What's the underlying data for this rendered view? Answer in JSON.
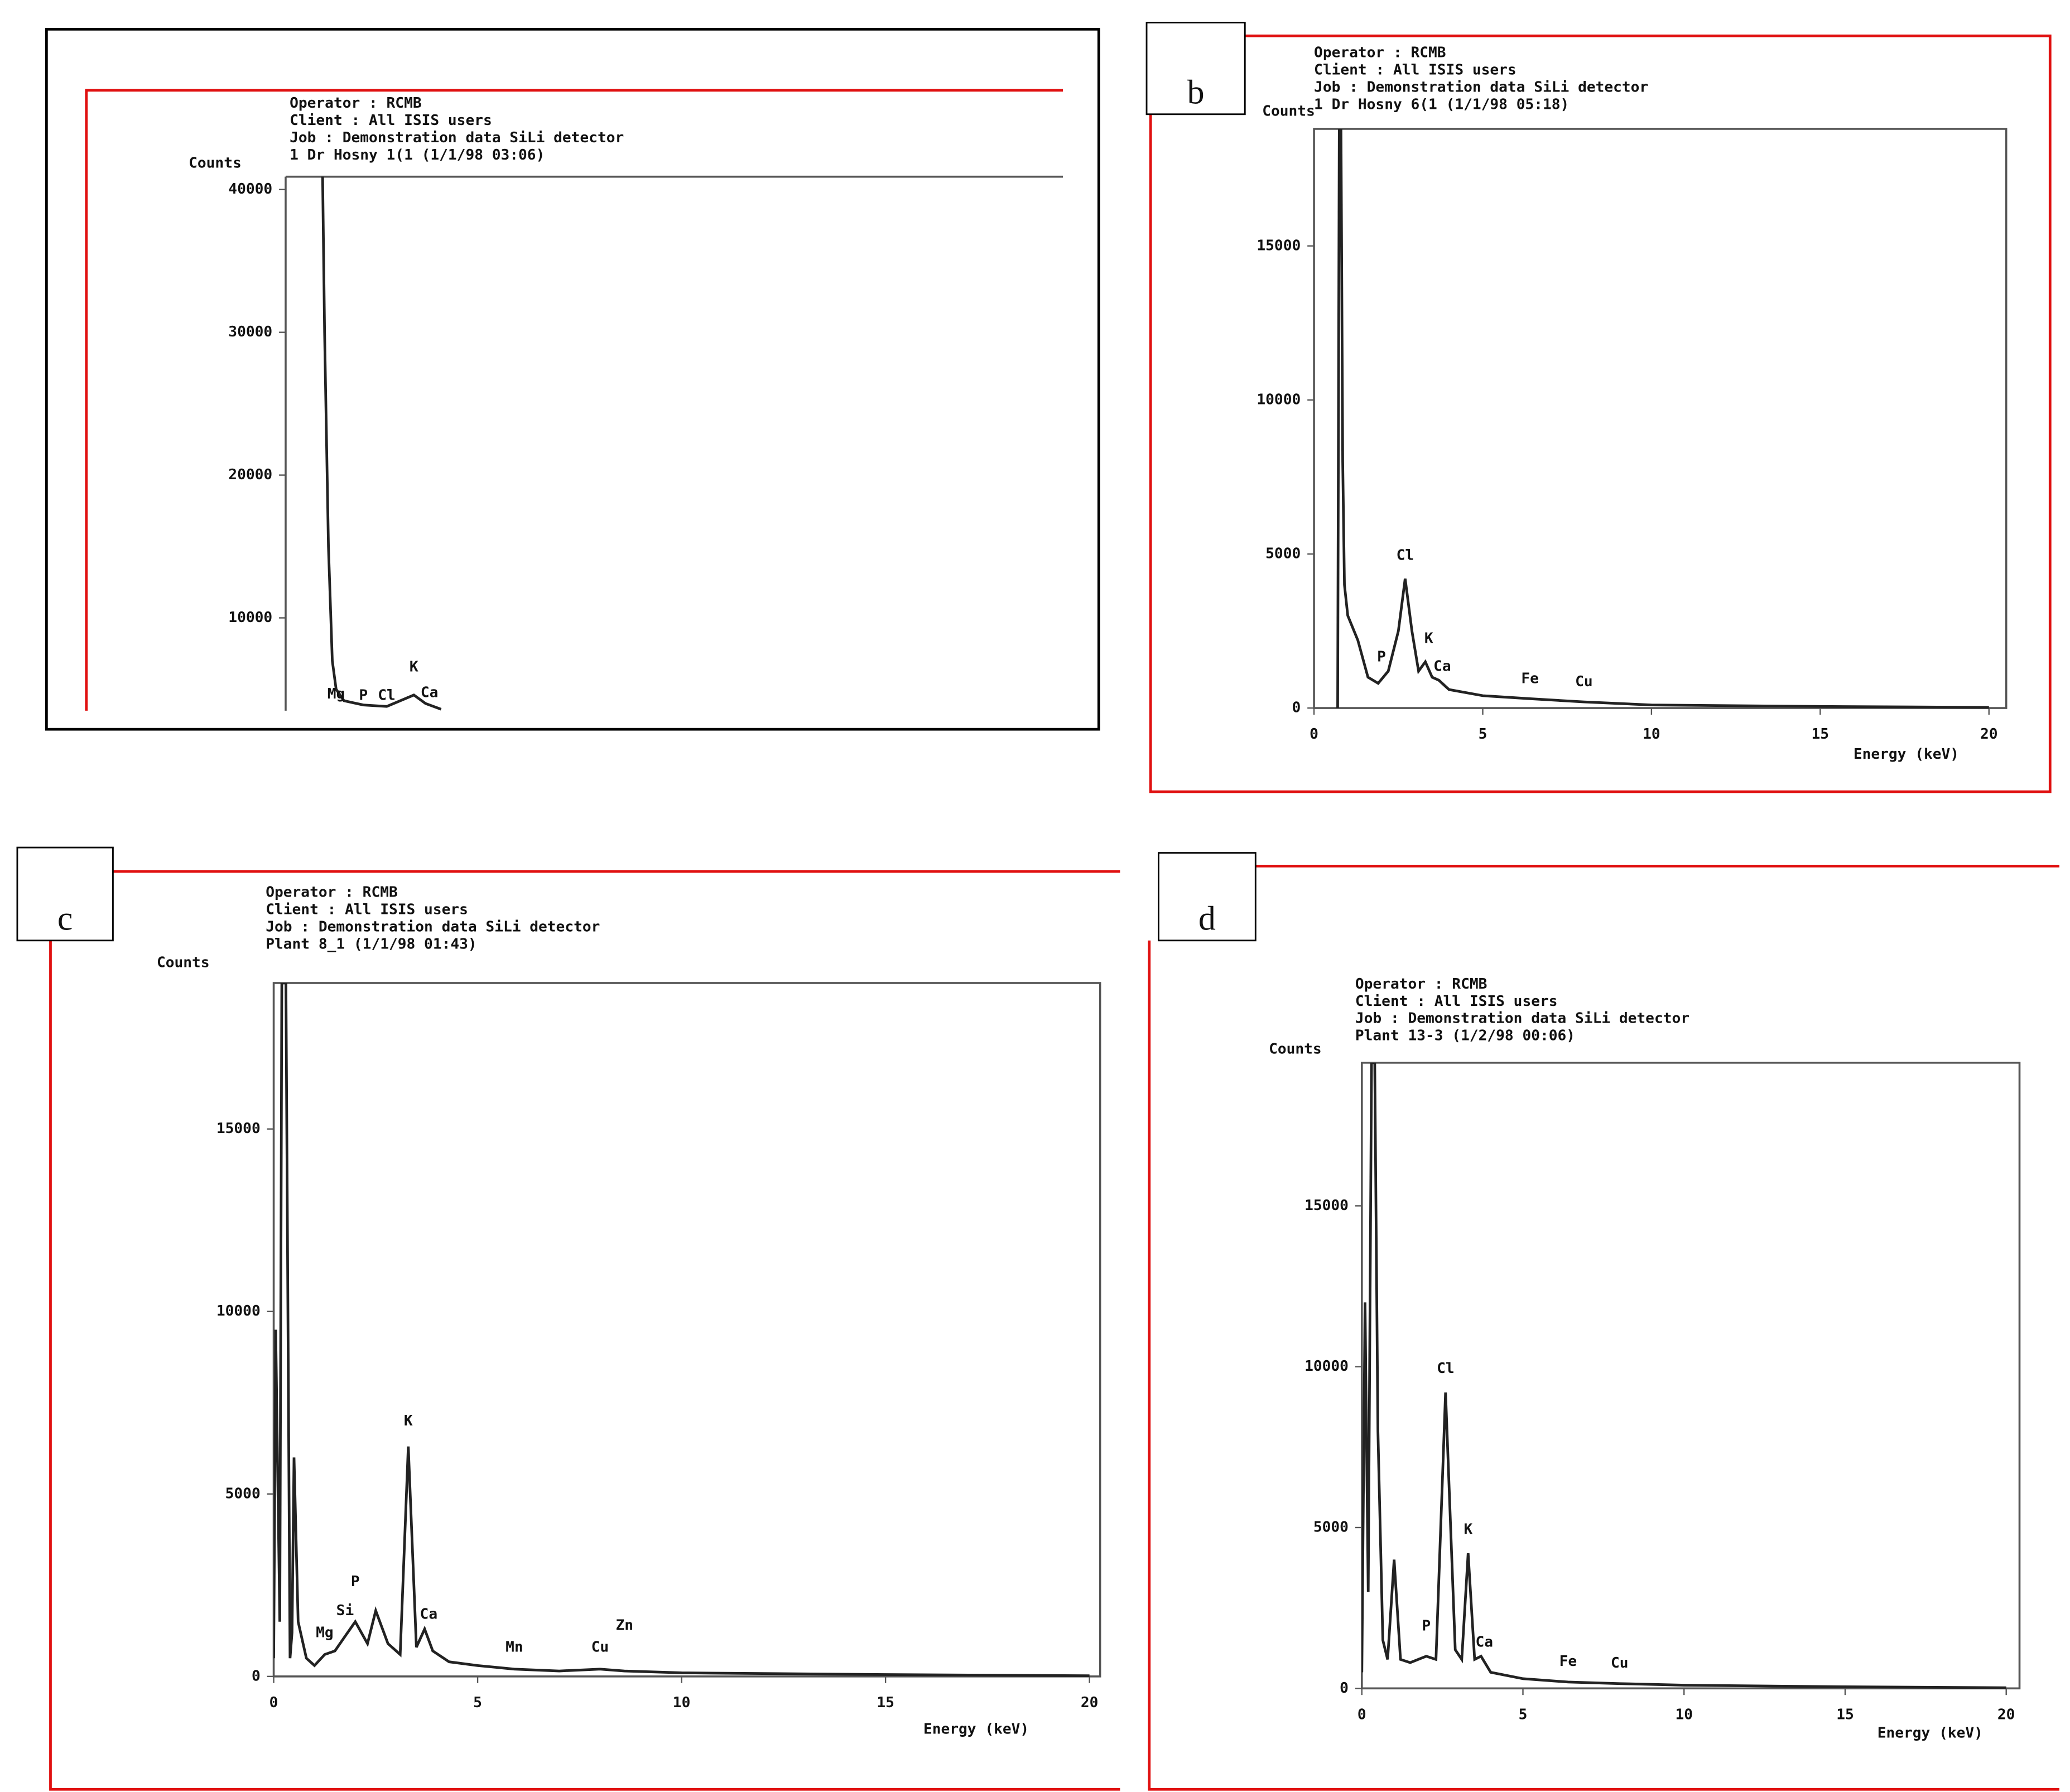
{
  "chart_data": [
    {
      "type": "line",
      "header": [
        "Operator : RCMB",
        "Client : All  ISIS  users",
        "Job : Demonstration data  SiLi detector",
        "1 Dr Hosny 1(1 (1/1/98 03:06)"
      ],
      "y_label": "Counts",
      "xlim": [
        0,
        20
      ],
      "ylim": [
        3500,
        40900
      ],
      "yticks": [
        10000,
        20000,
        30000,
        40000
      ],
      "x": [
        0.95,
        1.0,
        1.1,
        1.2,
        1.3,
        1.5,
        2.0,
        2.6,
        3.3,
        3.6,
        4.0
      ],
      "values": [
        41000,
        30000,
        15000,
        7000,
        5000,
        4200,
        3900,
        3800,
        4600,
        4000,
        3600
      ],
      "color": "#222",
      "annotations": [
        {
          "text": "Mg",
          "x": 1.3,
          "y": 3900
        },
        {
          "text": "P",
          "x": 2.0,
          "y": 3800
        },
        {
          "text": "Cl",
          "x": 2.6,
          "y": 3800
        },
        {
          "text": "K",
          "x": 3.3,
          "y": 5800
        },
        {
          "text": "Ca",
          "x": 3.7,
          "y": 4000
        }
      ]
    },
    {
      "type": "line",
      "label": "b",
      "header": [
        "Operator : RCMB",
        "Client : All  ISIS  users",
        "Job : Demonstration data  SiLi detector",
        "1 Dr Hosny 6(1 (1/1/98 05:18)"
      ],
      "y_label": "Counts",
      "x_label": "Energy (keV)",
      "xlim": [
        0,
        20
      ],
      "ylim": [
        0,
        18800
      ],
      "xticks": [
        0,
        5,
        10,
        15,
        20
      ],
      "yticks": [
        0,
        5000,
        10000,
        15000
      ],
      "x": [
        0.7,
        0.75,
        0.8,
        0.85,
        0.9,
        1.0,
        1.3,
        1.6,
        1.9,
        2.2,
        2.5,
        2.7,
        2.9,
        3.1,
        3.3,
        3.5,
        3.7,
        4.0,
        5,
        6.4,
        8,
        10,
        15,
        20
      ],
      "values": [
        0,
        18800,
        18800,
        8000,
        4000,
        3000,
        2200,
        1000,
        800,
        1200,
        2500,
        4200,
        2500,
        1200,
        1500,
        1000,
        900,
        600,
        400,
        300,
        200,
        100,
        50,
        20
      ],
      "color": "#222",
      "annotations": [
        {
          "text": "Cl",
          "x": 2.7,
          "y": 4600
        },
        {
          "text": "P",
          "x": 2.0,
          "y": 1300
        },
        {
          "text": "K",
          "x": 3.4,
          "y": 1900
        },
        {
          "text": "Ca",
          "x": 3.8,
          "y": 1000
        },
        {
          "text": "Fe",
          "x": 6.4,
          "y": 600
        },
        {
          "text": "Cu",
          "x": 8,
          "y": 500
        }
      ]
    },
    {
      "type": "line",
      "label": "c",
      "header": [
        "Operator : RCMB",
        "Client : All  ISIS  users",
        "Job : Demonstration data  SiLi detector",
        "Plant 8_1 (1/1/98 01:43)"
      ],
      "y_label": "Counts",
      "x_label": "Energy (keV)",
      "xlim": [
        0,
        20
      ],
      "ylim": [
        0,
        19000
      ],
      "xticks": [
        0,
        5,
        10,
        15,
        20
      ],
      "yticks": [
        0,
        5000,
        10000,
        15000
      ],
      "x": [
        0,
        0.05,
        0.15,
        0.2,
        0.3,
        0.4,
        0.45,
        0.5,
        0.6,
        0.8,
        1.0,
        1.25,
        1.5,
        1.75,
        2.0,
        2.3,
        2.5,
        2.8,
        3.1,
        3.3,
        3.5,
        3.7,
        3.9,
        4.3,
        5,
        5.9,
        7,
        8,
        8.6,
        10,
        15,
        20
      ],
      "values": [
        500,
        9500,
        1500,
        19000,
        19000,
        500,
        1200,
        6000,
        1500,
        500,
        300,
        600,
        700,
        1100,
        1500,
        900,
        1800,
        900,
        600,
        6300,
        800,
        1300,
        700,
        400,
        300,
        200,
        150,
        200,
        150,
        100,
        50,
        20
      ],
      "color": "#222",
      "annotations": [
        {
          "text": "Mg",
          "x": 1.25,
          "y": 900
        },
        {
          "text": "Si",
          "x": 1.75,
          "y": 1500
        },
        {
          "text": "P",
          "x": 2.0,
          "y": 2300
        },
        {
          "text": "K",
          "x": 3.3,
          "y": 6700
        },
        {
          "text": "Ca",
          "x": 3.8,
          "y": 1400
        },
        {
          "text": "Mn",
          "x": 5.9,
          "y": 500
        },
        {
          "text": "Cu",
          "x": 8,
          "y": 500
        },
        {
          "text": "Zn",
          "x": 8.6,
          "y": 1100
        }
      ]
    },
    {
      "type": "line",
      "label": "d",
      "header": [
        "Operator : RCMB",
        "Client : All  ISIS  users",
        "Job : Demonstration data  SiLi detector",
        "Plant 13-3 (1/2/98 00:06)"
      ],
      "y_label": "Counts",
      "x_label": "Energy (keV)",
      "xlim": [
        0,
        20
      ],
      "ylim": [
        0,
        19450
      ],
      "xticks": [
        0,
        5,
        10,
        15,
        20
      ],
      "yticks": [
        0,
        5000,
        10000,
        15000
      ],
      "x": [
        0,
        0.1,
        0.2,
        0.3,
        0.4,
        0.5,
        0.65,
        0.8,
        1.0,
        1.2,
        1.5,
        2.0,
        2.3,
        2.6,
        2.9,
        3.1,
        3.3,
        3.5,
        3.7,
        4.0,
        5,
        6.4,
        8,
        10,
        15,
        20
      ],
      "values": [
        500,
        12000,
        3000,
        19450,
        19450,
        8000,
        1500,
        900,
        4000,
        900,
        800,
        1000,
        900,
        9200,
        1200,
        900,
        4200,
        900,
        1000,
        500,
        300,
        200,
        150,
        100,
        50,
        20
      ],
      "color": "#222",
      "annotations": [
        {
          "text": "Cl",
          "x": 2.6,
          "y": 9600
        },
        {
          "text": "P",
          "x": 2.0,
          "y": 1600
        },
        {
          "text": "K",
          "x": 3.3,
          "y": 4600
        },
        {
          "text": "Ca",
          "x": 3.8,
          "y": 1100
        },
        {
          "text": "Fe",
          "x": 6.4,
          "y": 500
        },
        {
          "text": "Cu",
          "x": 8,
          "y": 450
        }
      ]
    }
  ]
}
